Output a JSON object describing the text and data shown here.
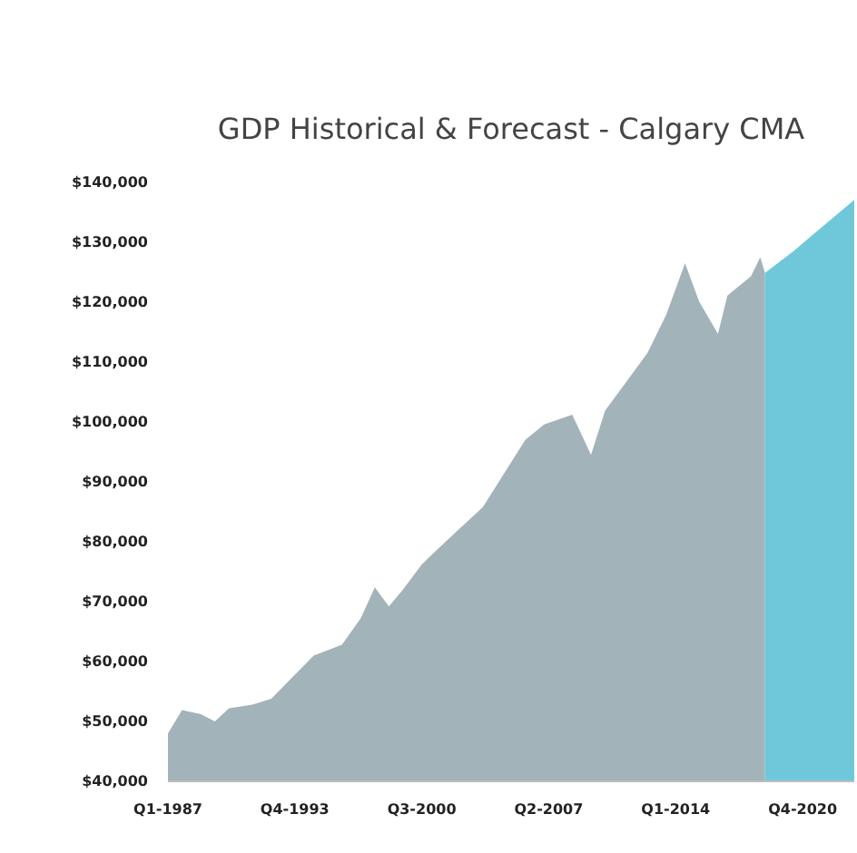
{
  "chart_data": {
    "type": "area",
    "title": "GDP Historical & Forecast - Calgary CMA",
    "series": [
      {
        "color": "#a3b3ba",
        "x": [
          "1987-01",
          "1987-10",
          "1988-10",
          "1989-07",
          "1990-04",
          "1991-07",
          "1992-07",
          "1994-10",
          "1996-04",
          "1997-04",
          "1998-01",
          "1998-10",
          "1999-07",
          "2000-07",
          "2001-04",
          "2003-10",
          "2006-01",
          "2007-01",
          "2008-07",
          "2009-07",
          "2010-04",
          "2012-07",
          "2013-07",
          "2014-07",
          "2015-04",
          "2016-04",
          "2016-10",
          "2018-01",
          "2018-07",
          "2018-10"
        ],
        "values": [
          48000,
          51900,
          51200,
          50000,
          52200,
          52800,
          53800,
          61000,
          62800,
          67200,
          72400,
          69200,
          72000,
          76200,
          78500,
          85800,
          97000,
          99600,
          101200,
          94500,
          101900,
          111500,
          117900,
          126500,
          120100,
          114700,
          121100,
          124300,
          127500,
          124900
        ]
      },
      {
        "color": "#6fc8da",
        "x": [
          "2018-10",
          "2020-04",
          "2023-07"
        ],
        "values": [
          124900,
          128500,
          137100
        ]
      }
    ],
    "xlim": [
      "1987-01",
      "2023-07"
    ],
    "xticks": [
      {
        "value": "1987-01",
        "label": "Q1-1987"
      },
      {
        "value": "1993-10",
        "label": "Q4-1993"
      },
      {
        "value": "2000-07",
        "label": "Q3-2000"
      },
      {
        "value": "2007-04",
        "label": "Q2-2007"
      },
      {
        "value": "2014-01",
        "label": "Q1-2014"
      },
      {
        "value": "2020-10",
        "label": "Q4-2020"
      }
    ],
    "ylim": [
      40000,
      140000
    ],
    "yticks": [
      {
        "value": 40000,
        "label": "$40,000"
      },
      {
        "value": 50000,
        "label": "$50,000"
      },
      {
        "value": 60000,
        "label": "$60,000"
      },
      {
        "value": 70000,
        "label": "$70,000"
      },
      {
        "value": 80000,
        "label": "$80,000"
      },
      {
        "value": 90000,
        "label": "$90,000"
      },
      {
        "value": 100000,
        "label": "$100,000"
      },
      {
        "value": 110000,
        "label": "$110,000"
      },
      {
        "value": 120000,
        "label": "$120,000"
      },
      {
        "value": 130000,
        "label": "$130,000"
      },
      {
        "value": 140000,
        "label": "$140,000"
      }
    ],
    "grid": false
  }
}
